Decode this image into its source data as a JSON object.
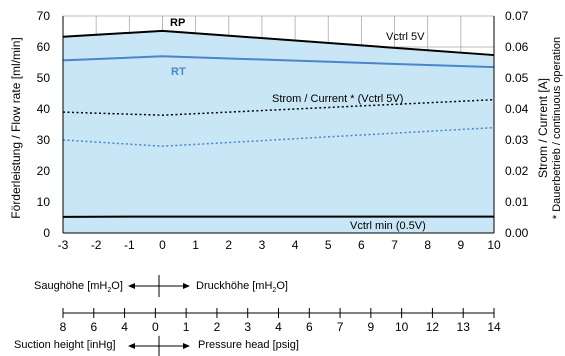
{
  "chart_data": {
    "type": "area",
    "ylabel": "Förderleistung / Flow rate [ml/min]",
    "y2label_line1": "Strom / Current [A]",
    "y2label_line2": "* Dauerbetrieb / continuous operation",
    "x": [
      -3,
      -2,
      -1,
      0,
      1,
      2,
      3,
      4,
      5,
      6,
      7,
      8,
      9,
      10
    ],
    "xlim": [
      -3,
      10
    ],
    "ylim": [
      0,
      70
    ],
    "y_ticks": [
      0,
      10,
      20,
      30,
      40,
      50,
      60,
      70
    ],
    "y2lim": [
      0.0,
      0.07
    ],
    "y2_ticks": [
      "0.00",
      "0.01",
      "0.02",
      "0.03",
      "0.04",
      "0.05",
      "0.06",
      "0.07"
    ],
    "x_ticks": [
      "-3",
      "-2",
      "-1",
      "0",
      "1",
      "2",
      "3",
      "4",
      "5",
      "6",
      "7",
      "8",
      "9",
      "10"
    ],
    "grid": true,
    "fill_color": "#c9e6f6",
    "series": [
      {
        "name": "RP",
        "axis": "left",
        "style": "solid",
        "color": "#000000",
        "x": [
          -3,
          0,
          10
        ],
        "values": [
          63.3,
          65.2,
          57.4
        ]
      },
      {
        "name": "RT",
        "axis": "left",
        "style": "solid",
        "color": "#4a86c8",
        "x": [
          -3,
          0,
          10
        ],
        "values": [
          55.7,
          57.0,
          53.5
        ]
      },
      {
        "name": "",
        "axis": "left",
        "style": "solid",
        "color": "#000000",
        "x": [
          -3,
          0,
          10
        ],
        "values": [
          5.2,
          5.3,
          5.3
        ]
      },
      {
        "name": "",
        "axis": "right",
        "style": "dotted",
        "color": "#000000",
        "x": [
          -3,
          0,
          10
        ],
        "values": [
          0.039,
          0.038,
          0.043
        ]
      },
      {
        "name": "",
        "axis": "right",
        "style": "dotted",
        "color": "#4a86c8",
        "x": [
          -3,
          0,
          10
        ],
        "values": [
          0.03,
          0.028,
          0.034
        ]
      }
    ],
    "annotations": {
      "rp": "RP",
      "rt": "RT",
      "vctrl5": "Vctrl 5V",
      "current": "Strom / Current * (Vctrl 5V)",
      "vctrlmin": "Vctrl min (0.5V)"
    },
    "scale1": {
      "left": "Saughöhe [mH",
      "left_sub": "2",
      "left_end": "O]",
      "right": "Druckhöhe [mH",
      "right_sub": "2",
      "right_end": "O]"
    },
    "scale2": {
      "ticks": [
        "8",
        "6",
        "4",
        "0",
        "1",
        "2",
        "3",
        "4",
        "6",
        "7",
        "9",
        "10",
        "12",
        "13",
        "14"
      ],
      "left": "Suction height [inHg]",
      "right": "Pressure head [psig]"
    }
  }
}
